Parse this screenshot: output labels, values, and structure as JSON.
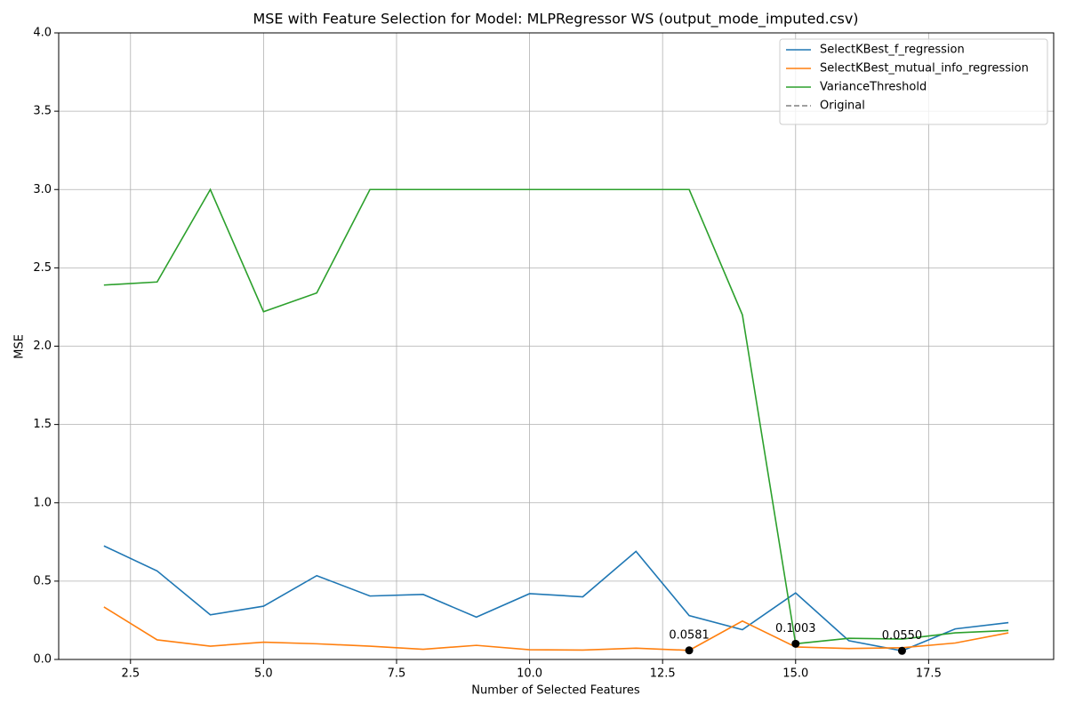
{
  "chart_data": {
    "type": "line",
    "title": "MSE with Feature Selection for Model: MLPRegressor WS (output_mode_imputed.csv)",
    "xlabel": "Number of Selected Features",
    "ylabel": "MSE",
    "x": [
      2,
      3,
      4,
      5,
      6,
      7,
      8,
      9,
      10,
      11,
      12,
      13,
      14,
      15,
      16,
      17,
      18,
      19
    ],
    "series": [
      {
        "name": "SelectKBest_f_regression",
        "color": "#1f77b4",
        "values": [
          0.725,
          0.565,
          0.285,
          0.34,
          0.535,
          0.405,
          0.415,
          0.27,
          0.42,
          0.4,
          0.69,
          0.28,
          0.19,
          0.425,
          0.12,
          0.055,
          0.195,
          0.235
        ]
      },
      {
        "name": "SelectKBest_mutual_info_regression",
        "color": "#ff7f0e",
        "values": [
          0.335,
          0.125,
          0.085,
          0.11,
          0.1,
          0.085,
          0.065,
          0.09,
          0.062,
          0.06,
          0.072,
          0.0581,
          0.245,
          0.08,
          0.07,
          0.075,
          0.105,
          0.17
        ]
      },
      {
        "name": "VarianceThreshold",
        "color": "#2ca02c",
        "values": [
          2.39,
          2.41,
          3.0,
          2.22,
          2.34,
          3.0,
          3.0,
          3.0,
          3.0,
          3.0,
          3.0,
          3.0,
          2.2,
          0.1003,
          0.135,
          0.13,
          0.17,
          0.185
        ]
      },
      {
        "name": "Original",
        "color": "#808080",
        "dashed": true,
        "values": [
          null,
          null,
          null,
          null,
          null,
          null,
          null,
          null,
          null,
          null,
          null,
          null,
          null,
          null,
          null,
          null,
          null,
          null
        ]
      }
    ],
    "best_points": {
      "color": "#000000",
      "x": [
        13,
        15,
        17
      ],
      "values": [
        0.0581,
        0.1003,
        0.055
      ],
      "value_labels": [
        "0.0581",
        "0.1003",
        "0.0550"
      ]
    },
    "xlim": [
      1.15,
      19.85
    ],
    "ylim": [
      0,
      4
    ],
    "xticks": [
      2.5,
      {
        "value": 5,
        "label": "5.0"
      },
      7.5,
      {
        "value": 10,
        "label": "10.0"
      },
      12.5,
      {
        "value": 15,
        "label": "15.0"
      },
      17.5
    ],
    "yticks": [
      {
        "value": 0,
        "label": "0.0"
      },
      0.5,
      {
        "value": 1,
        "label": "1.0"
      },
      1.5,
      {
        "value": 2,
        "label": "2.0"
      },
      2.5,
      {
        "value": 3,
        "label": "3.0"
      },
      3.5,
      {
        "value": 4,
        "label": "4.0"
      }
    ],
    "grid": true,
    "legend": "upper right"
  }
}
